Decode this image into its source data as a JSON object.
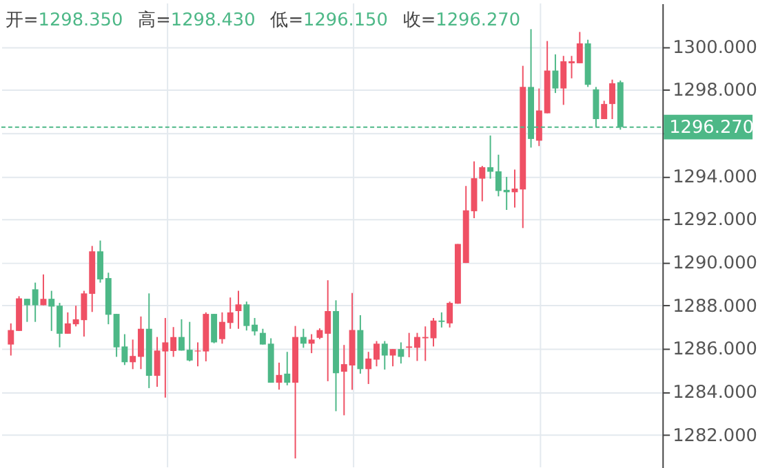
{
  "chart_data": {
    "type": "candlestick",
    "annotations": [
      "开=1298.350",
      "高=1298.430",
      "低=1296.150",
      "收=1296.270"
    ],
    "categories": [
      null,
      null,
      null,
      null,
      null,
      null,
      null,
      null,
      null,
      null,
      null,
      null,
      null,
      null,
      null,
      null,
      null,
      null,
      null,
      null,
      null,
      null,
      null,
      null,
      null,
      null,
      null,
      null,
      null,
      null,
      null,
      null,
      null,
      null,
      null,
      null,
      null,
      null,
      null,
      null,
      null,
      null,
      null,
      null,
      null,
      null,
      null,
      null,
      null,
      null,
      null,
      null,
      null,
      null,
      null,
      null,
      null,
      null,
      null,
      null,
      null,
      null,
      null,
      null,
      null,
      null,
      null,
      null,
      null,
      null,
      null,
      null,
      null,
      null,
      null,
      null
    ],
    "ohlc": [
      [
        1286.19,
        1287.17,
        1285.68,
        1286.86
      ],
      [
        1286.82,
        1288.43,
        1286.82,
        1288.33
      ],
      [
        1288.31,
        1288.31,
        1287.24,
        1288.01
      ],
      [
        1288.75,
        1289.06,
        1287.24,
        1288.01
      ],
      [
        1288.01,
        1289.44,
        1288.01,
        1288.31
      ],
      [
        1288.31,
        1288.68,
        1286.82,
        1287.95
      ],
      [
        1287.99,
        1288.12,
        1286.06,
        1286.69
      ],
      [
        1286.69,
        1287.68,
        1286.69,
        1287.17
      ],
      [
        1287.13,
        1287.99,
        1287.03,
        1287.36
      ],
      [
        1287.32,
        1288.68,
        1286.56,
        1288.56
      ],
      [
        1288.54,
        1290.76,
        1287.7,
        1290.51
      ],
      [
        1290.51,
        1291.01,
        1289.06,
        1289.21
      ],
      [
        1289.27,
        1289.52,
        1287.13,
        1287.57
      ],
      [
        1287.61,
        1287.61,
        1285.62,
        1286.06
      ],
      [
        1286.1,
        1286.67,
        1285.24,
        1285.37
      ],
      [
        1285.37,
        1286.42,
        1285.05,
        1285.66
      ],
      [
        1285.62,
        1287.49,
        1285.05,
        1286.92
      ],
      [
        1286.92,
        1288.56,
        1284.17,
        1284.74
      ],
      [
        1284.74,
        1286.54,
        1284.23,
        1285.91
      ],
      [
        1285.87,
        1287.42,
        1283.73,
        1286.29
      ],
      [
        1285.89,
        1287.0,
        1285.62,
        1286.54
      ],
      [
        1286.54,
        1287.36,
        1285.91,
        1285.91
      ],
      [
        1285.95,
        1287.24,
        1285.41,
        1285.45
      ],
      [
        1285.87,
        1286.29,
        1285.18,
        1285.91
      ],
      [
        1285.87,
        1287.68,
        1285.41,
        1287.61
      ],
      [
        1287.61,
        1287.61,
        1286.25,
        1286.29
      ],
      [
        1286.44,
        1287.68,
        1286.23,
        1287.24
      ],
      [
        1287.19,
        1288.37,
        1286.92,
        1287.68
      ],
      [
        1287.74,
        1288.68,
        1286.92,
        1288.05
      ],
      [
        1288.05,
        1288.18,
        1286.84,
        1287.05
      ],
      [
        1287.11,
        1287.42,
        1286.61,
        1286.8
      ],
      [
        1286.73,
        1286.92,
        1286.19,
        1286.19
      ],
      [
        1286.23,
        1286.48,
        1284.42,
        1284.42
      ],
      [
        1284.42,
        1285.35,
        1284.1,
        1284.78
      ],
      [
        1284.84,
        1285.85,
        1284.3,
        1284.42
      ],
      [
        1284.42,
        1287.05,
        1280.91,
        1286.54
      ],
      [
        1286.54,
        1286.92,
        1286.04,
        1286.23
      ],
      [
        1286.23,
        1286.67,
        1285.79,
        1286.42
      ],
      [
        1286.5,
        1286.94,
        1286.44,
        1286.86
      ],
      [
        1286.69,
        1289.17,
        1284.49,
        1287.74
      ],
      [
        1287.74,
        1288.24,
        1283.1,
        1284.86
      ],
      [
        1284.93,
        1286.17,
        1282.91,
        1285.28
      ],
      [
        1285.22,
        1288.58,
        1284.09,
        1286.86
      ],
      [
        1286.86,
        1287.55,
        1284.84,
        1285.05
      ],
      [
        1285.05,
        1285.85,
        1284.36,
        1285.54
      ],
      [
        1285.49,
        1286.35,
        1285.18,
        1286.23
      ],
      [
        1286.23,
        1286.35,
        1285.03,
        1285.68
      ],
      [
        1285.68,
        1285.98,
        1285.18,
        1285.98
      ],
      [
        1285.98,
        1286.29,
        1285.31,
        1285.62
      ],
      [
        1286.04,
        1286.73,
        1285.6,
        1286.1
      ],
      [
        1286.04,
        1286.73,
        1285.43,
        1286.54
      ],
      [
        1286.48,
        1287.03,
        1285.43,
        1286.54
      ],
      [
        1286.48,
        1287.42,
        1286.1,
        1287.3
      ],
      [
        1287.3,
        1287.68,
        1286.98,
        1287.24
      ],
      [
        1287.17,
        1288.18,
        1286.98,
        1288.12
      ],
      [
        1288.08,
        1290.85,
        1288.08,
        1290.85
      ],
      [
        1289.97,
        1293.54,
        1289.97,
        1292.41
      ],
      [
        1292.37,
        1294.68,
        1292.05,
        1293.9
      ],
      [
        1293.88,
        1294.47,
        1292.83,
        1294.41
      ],
      [
        1294.41,
        1295.88,
        1293.88,
        1294.2
      ],
      [
        1294.22,
        1294.99,
        1293.06,
        1293.31
      ],
      [
        1293.36,
        1293.96,
        1292.43,
        1293.25
      ],
      [
        1293.25,
        1294.3,
        1292.54,
        1293.42
      ],
      [
        1293.38,
        1299.11,
        1291.59,
        1298.13
      ],
      [
        1298.13,
        1300.81,
        1295.32,
        1295.72
      ],
      [
        1295.64,
        1298.06,
        1295.39,
        1297.04
      ],
      [
        1296.91,
        1300.26,
        1296.91,
        1298.89
      ],
      [
        1298.89,
        1299.64,
        1297.85,
        1298.06
      ],
      [
        1298.06,
        1299.57,
        1297.3,
        1299.32
      ],
      [
        1299.23,
        1299.57,
        1298.53,
        1299.32
      ],
      [
        1299.23,
        1300.68,
        1299.23,
        1300.15
      ],
      [
        1300.15,
        1300.32,
        1298.13,
        1298.23
      ],
      [
        1298.02,
        1298.13,
        1296.28,
        1296.64
      ],
      [
        1296.64,
        1297.49,
        1296.64,
        1297.34
      ],
      [
        1297.34,
        1298.47,
        1296.64,
        1298.3
      ],
      [
        1298.35,
        1298.43,
        1296.15,
        1296.27
      ]
    ],
    "colors": [
      "#ef5064",
      "#ef5064",
      "#4db887",
      "#4db887",
      "#ef5064",
      "#4db887",
      "#4db887",
      "#ef5064",
      "#ef5064",
      "#ef5064",
      "#ef5064",
      "#4db887",
      "#4db887",
      "#4db887",
      "#4db887",
      "#ef5064",
      "#ef5064",
      "#4db887",
      "#ef5064",
      "#ef5064",
      "#ef5064",
      "#4db887",
      "#4db887",
      "#ef5064",
      "#ef5064",
      "#4db887",
      "#ef5064",
      "#ef5064",
      "#ef5064",
      "#4db887",
      "#4db887",
      "#4db887",
      "#4db887",
      "#ef5064",
      "#4db887",
      "#ef5064",
      "#4db887",
      "#ef5064",
      "#ef5064",
      "#ef5064",
      "#4db887",
      "#ef5064",
      "#ef5064",
      "#4db887",
      "#ef5064",
      "#ef5064",
      "#4db887",
      "#ef5064",
      "#4db887",
      "#ef5064",
      "#ef5064",
      "#ef5064",
      "#ef5064",
      "#4db887",
      "#ef5064",
      "#ef5064",
      "#ef5064",
      "#ef5064",
      "#ef5064",
      "#4db887",
      "#4db887",
      "#4db887",
      "#ef5064",
      "#ef5064",
      "#4db887",
      "#ef5064",
      "#ef5064",
      "#4db887",
      "#ef5064",
      "#ef5064",
      "#ef5064",
      "#4db887",
      "#4db887",
      "#ef5064",
      "#ef5064",
      "#4db887"
    ],
    "ylim": [
      1280.5,
      1302
    ],
    "yticks": [
      {
        "value": 1282,
        "label": "1282.000"
      },
      {
        "value": 1284,
        "label": "1284.000"
      },
      {
        "value": 1286,
        "label": "1286.000"
      },
      {
        "value": 1288,
        "label": "1288.000"
      },
      {
        "value": 1290,
        "label": "1290.000"
      },
      {
        "value": 1292,
        "label": "1292.000"
      },
      {
        "value": 1294,
        "label": "1294.000"
      },
      {
        "value": 1296,
        "label": null
      },
      {
        "value": 1298,
        "label": "1298.000"
      },
      {
        "value": 1300,
        "label": "1300.000"
      }
    ],
    "ref_lines": [
      {
        "axis": "y",
        "value": 1296.27,
        "label": "1296.270",
        "color": "#4db887",
        "line_style": "dashed"
      }
    ],
    "grid": true,
    "tick_labels": "y"
  }
}
